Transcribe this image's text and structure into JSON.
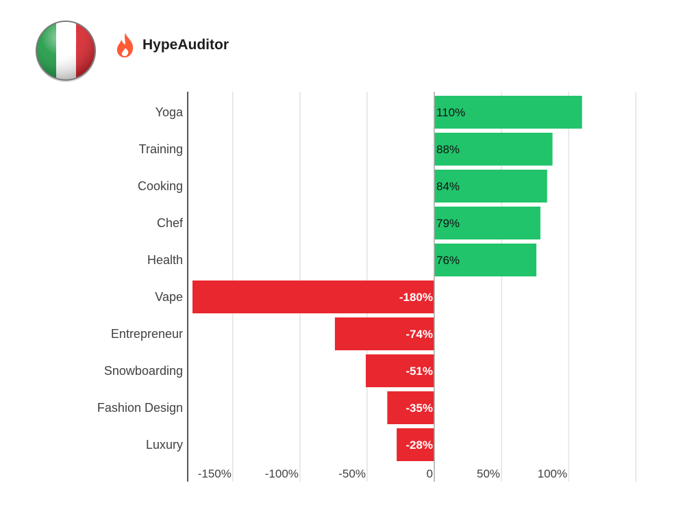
{
  "brand": {
    "name": "HypeAuditor",
    "logo_icon": "flame-icon",
    "logo_color": "#ff5a36",
    "flag_icon": "italy-flag-icon",
    "flag_colors": [
      "#1f9a45",
      "#ffffff",
      "#d8262e"
    ]
  },
  "chart_data": {
    "type": "bar",
    "orientation": "horizontal",
    "categories": [
      "Yoga",
      "Training",
      "Cooking",
      "Chef",
      "Health",
      "Vape",
      "Entrepreneur",
      "Snowboarding",
      "Fashion Design",
      "Luxury"
    ],
    "values": [
      110,
      88,
      84,
      79,
      76,
      -180,
      -74,
      -51,
      -35,
      -28
    ],
    "data_labels": [
      "110%",
      "88%",
      "84%",
      "79%",
      "76%",
      "-180%",
      "-74%",
      "-51%",
      "-35%",
      "-28%"
    ],
    "x_ticks": [
      -150,
      -100,
      -50,
      0,
      50,
      100
    ],
    "x_tick_labels": [
      "-150%",
      "-100%",
      "-50%",
      "0",
      "50%",
      "100%"
    ],
    "xlim": [
      -183,
      120
    ],
    "grid": true,
    "colors": {
      "positive": "#21c46b",
      "negative": "#e8272e"
    },
    "title": "",
    "xlabel": "",
    "ylabel": ""
  }
}
